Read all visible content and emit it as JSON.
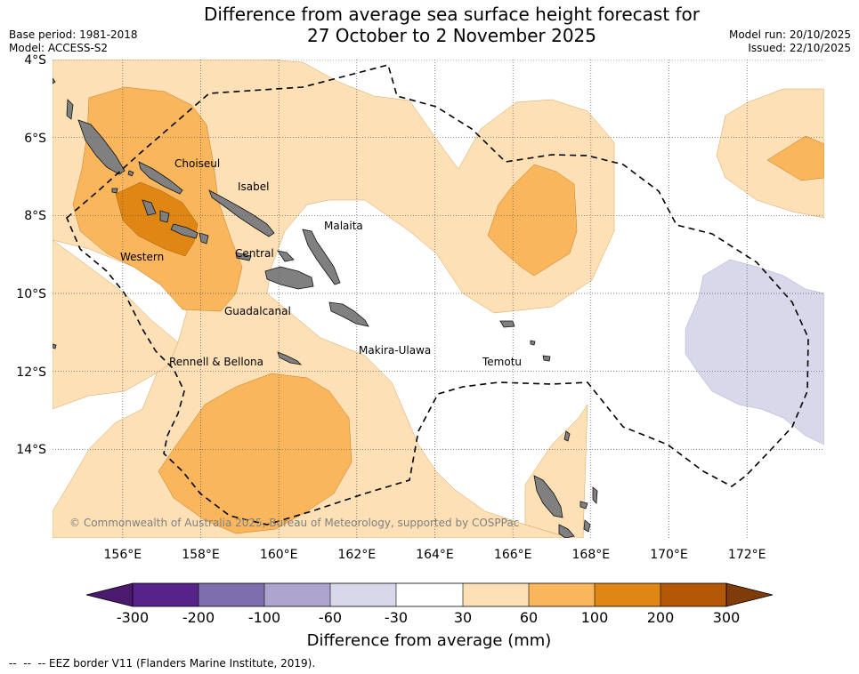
{
  "title_line1": "Difference from average sea surface height forecast for",
  "title_line2": "27 October to 2 November 2025",
  "base_period": "Base period: 1981-2018",
  "model": "Model: ACCESS-S2",
  "model_run": "Model run: 20/10/2025",
  "issued": "Issued: 22/10/2025",
  "copyright": "© Commonwealth of Australia 2025, Bureau of Meteorology, supported by COSPPac",
  "lat_labels": [
    "4°S",
    "6°S",
    "8°S",
    "10°S",
    "12°S",
    "14°S"
  ],
  "lon_labels": [
    "156°E",
    "158°E",
    "160°E",
    "162°E",
    "164°E",
    "166°E",
    "168°E",
    "170°E",
    "172°E"
  ],
  "province_labels": [
    "Choiseul",
    "Isabel",
    "Malaita",
    "Western",
    "Central",
    "Guadalcanal",
    "Makira-Ulawa",
    "Rennell & Bellona",
    "Temotu"
  ],
  "colorbar": {
    "title": "Difference from average (mm)",
    "ticks": [
      "-300",
      "-200",
      "-100",
      "-60",
      "-30",
      "30",
      "60",
      "100",
      "200",
      "300"
    ],
    "colors": [
      "#4b1a6e",
      "#56238a",
      "#7f6ead",
      "#ada5cf",
      "#d8d8ea",
      "#ffffff",
      "#fde0b6",
      "#fab65c",
      "#e08614",
      "#b35806",
      "#7f3b08"
    ]
  },
  "footer": "--  --  -- EEZ border V11 (Flanders Marine Institute, 2019)."
}
